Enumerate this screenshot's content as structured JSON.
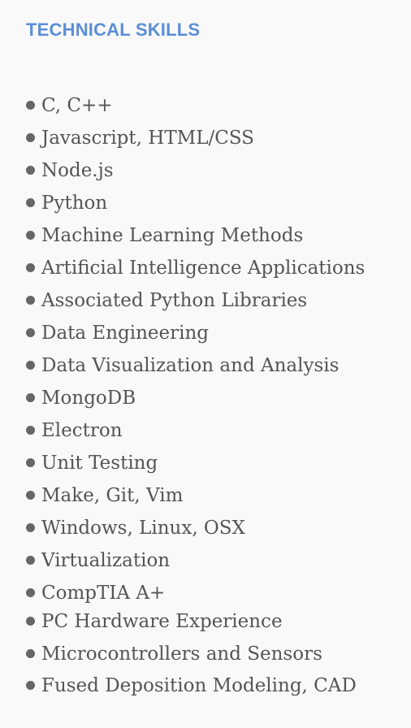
{
  "section": {
    "title": "TECHNICAL SKILLS",
    "skills": [
      "C, C++",
      "Javascript, HTML/CSS",
      "Node.js",
      "Python",
      "Machine Learning Methods",
      "Artificial Intelligence Applications",
      "Associated Python Libraries",
      "Data Engineering",
      "Data Visualization and Analysis",
      "MongoDB",
      "Electron",
      "Unit Testing",
      "Make, Git, Vim",
      "Windows, Linux, OSX",
      "Virtualization",
      "CompTIA A+",
      "PC Hardware Experience",
      "Microcontrollers and Sensors",
      "Fused Deposition Modeling, CAD"
    ],
    "bullet_icon": "bullet-dot-icon"
  },
  "colors": {
    "background": "#f9f9f9",
    "heading": "#5b8fd6",
    "text": "#555555",
    "bullet": "#666666"
  }
}
